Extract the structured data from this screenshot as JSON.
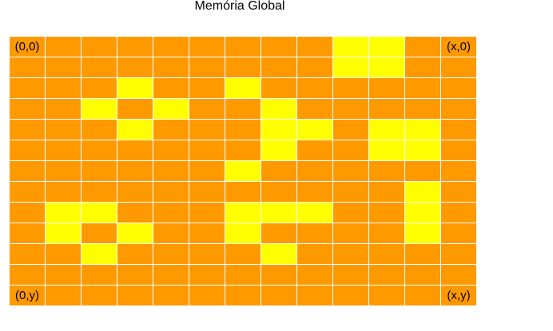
{
  "title": "Memória Global",
  "colors": {
    "base": "#ff9900",
    "highlight": "#ffff00",
    "gridline": "#ffffff"
  },
  "grid": {
    "columns": 13,
    "rows": 13,
    "highlighted_cells": [
      [
        0,
        9
      ],
      [
        0,
        10
      ],
      [
        1,
        9
      ],
      [
        1,
        10
      ],
      [
        2,
        3
      ],
      [
        2,
        6
      ],
      [
        3,
        2
      ],
      [
        3,
        4
      ],
      [
        3,
        7
      ],
      [
        4,
        3
      ],
      [
        4,
        7
      ],
      [
        4,
        8
      ],
      [
        4,
        10
      ],
      [
        4,
        11
      ],
      [
        5,
        7
      ],
      [
        5,
        10
      ],
      [
        5,
        11
      ],
      [
        6,
        6
      ],
      [
        7,
        11
      ],
      [
        8,
        1
      ],
      [
        8,
        2
      ],
      [
        8,
        6
      ],
      [
        8,
        7
      ],
      [
        8,
        8
      ],
      [
        8,
        11
      ],
      [
        9,
        1
      ],
      [
        9,
        3
      ],
      [
        9,
        6
      ],
      [
        9,
        11
      ],
      [
        10,
        2
      ],
      [
        10,
        7
      ]
    ],
    "corner_labels": {
      "top_left": "(0,0)",
      "top_right": "(x,0)",
      "bottom_left": "(0,y)",
      "bottom_right": "(x,y)"
    }
  }
}
